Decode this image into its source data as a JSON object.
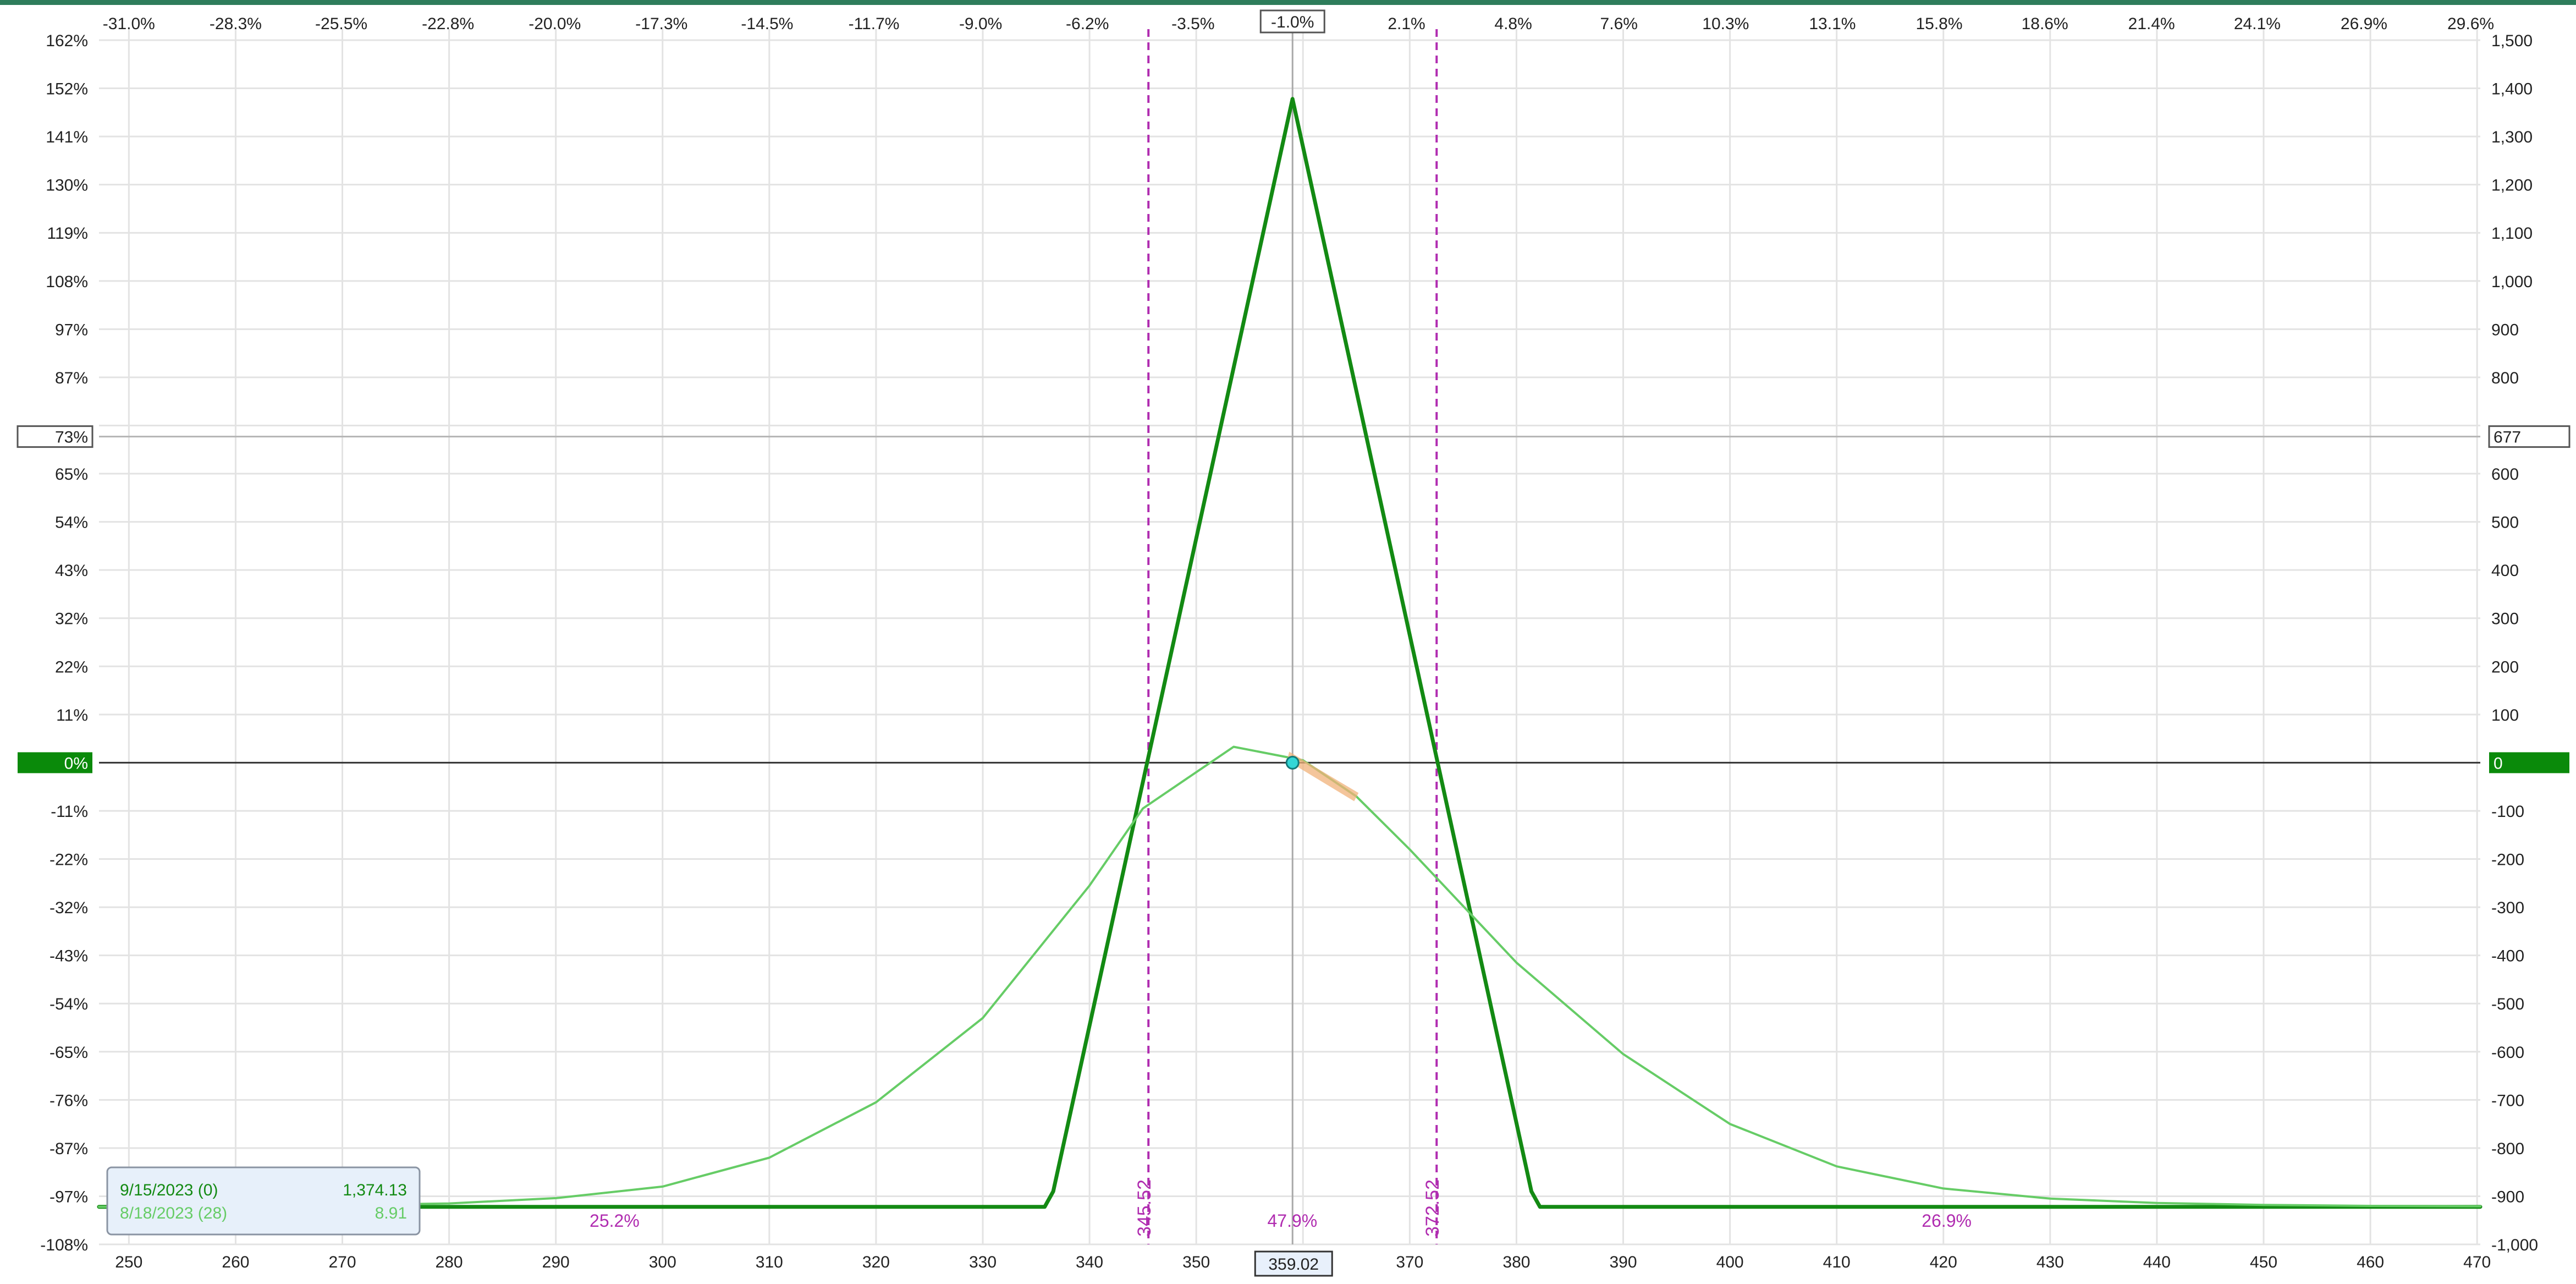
{
  "chart_data": {
    "type": "line",
    "x_axis": {
      "ticks": [
        250,
        260,
        270,
        280,
        290,
        300,
        310,
        320,
        330,
        340,
        350,
        360,
        370,
        380,
        390,
        400,
        410,
        420,
        430,
        440,
        450,
        460,
        470
      ],
      "range": [
        247.2,
        470.3
      ],
      "current_price_label": "359.02",
      "current_price": 359.02
    },
    "top_axis": {
      "pct_ticks": [
        {
          "x": 250.0,
          "label": "-31.0%"
        },
        {
          "x": 260.0,
          "label": "-28.3%"
        },
        {
          "x": 269.9,
          "label": "-25.5%"
        },
        {
          "x": 279.9,
          "label": "-22.8%"
        },
        {
          "x": 289.9,
          "label": "-20.0%"
        },
        {
          "x": 299.9,
          "label": "-17.3%"
        },
        {
          "x": 309.8,
          "label": "-14.5%"
        },
        {
          "x": 319.8,
          "label": "-11.7%"
        },
        {
          "x": 329.8,
          "label": "-9.0%"
        },
        {
          "x": 339.8,
          "label": "-6.2%"
        },
        {
          "x": 349.7,
          "label": "-3.5%"
        },
        {
          "x": 369.7,
          "label": "2.1%"
        },
        {
          "x": 379.7,
          "label": "4.8%"
        },
        {
          "x": 389.6,
          "label": "7.6%"
        },
        {
          "x": 399.6,
          "label": "10.3%"
        },
        {
          "x": 409.6,
          "label": "13.1%"
        },
        {
          "x": 419.6,
          "label": "15.8%"
        },
        {
          "x": 429.5,
          "label": "18.6%"
        },
        {
          "x": 439.5,
          "label": "21.4%"
        },
        {
          "x": 449.4,
          "label": "24.1%"
        },
        {
          "x": 459.4,
          "label": "26.9%"
        },
        {
          "x": 469.4,
          "label": "29.6%"
        }
      ],
      "current_label": "-1.0%"
    },
    "left_axis": {
      "ticks": [
        {
          "y": 1500,
          "label": "162%"
        },
        {
          "y": 1400,
          "label": "152%"
        },
        {
          "y": 1300,
          "label": "141%"
        },
        {
          "y": 1200,
          "label": "130%"
        },
        {
          "y": 1100,
          "label": "119%"
        },
        {
          "y": 1000,
          "label": "108%"
        },
        {
          "y": 900,
          "label": "97%"
        },
        {
          "y": 800,
          "label": "87%"
        },
        {
          "y": 600,
          "label": "65%"
        },
        {
          "y": 500,
          "label": "54%"
        },
        {
          "y": 400,
          "label": "43%"
        },
        {
          "y": 300,
          "label": "32%"
        },
        {
          "y": 200,
          "label": "22%"
        },
        {
          "y": 100,
          "label": "11%"
        },
        {
          "y": -100,
          "label": "-11%"
        },
        {
          "y": -200,
          "label": "-22%"
        },
        {
          "y": -300,
          "label": "-32%"
        },
        {
          "y": -400,
          "label": "-43%"
        },
        {
          "y": -500,
          "label": "-54%"
        },
        {
          "y": -600,
          "label": "-65%"
        },
        {
          "y": -700,
          "label": "-76%"
        },
        {
          "y": -800,
          "label": "-87%"
        },
        {
          "y": -900,
          "label": "-97%"
        },
        {
          "y": -1000,
          "label": "-108%"
        }
      ],
      "zero_label": "0%",
      "cursor_label": "73%"
    },
    "right_axis": {
      "ticks": [
        1500,
        1400,
        1300,
        1200,
        1100,
        1000,
        900,
        800,
        600,
        500,
        400,
        300,
        200,
        100,
        -100,
        -200,
        -300,
        -400,
        -500,
        -600,
        -700,
        -800,
        -900,
        -1000
      ],
      "tick_labels": [
        "1,500",
        "1,400",
        "1,300",
        "1,200",
        "1,100",
        "1,000",
        "900",
        "800",
        "600",
        "500",
        "400",
        "300",
        "200",
        "100",
        "-100",
        "-200",
        "-300",
        "-400",
        "-500",
        "-600",
        "-700",
        "-800",
        "-900",
        "-1,000"
      ],
      "zero_label": "0",
      "cursor_label": "677",
      "cursor_value": 677
    },
    "y_range": [
      -1000,
      1500
    ],
    "series": [
      {
        "name": "9/15/2023 (0)",
        "color": "#138a13",
        "x": [
          247.2,
          335.8,
          336.6,
          359.02,
          381.4,
          382.2,
          470.3
        ],
        "y": [
          -922,
          -922,
          -890,
          1378,
          -890,
          -922,
          -922
        ]
      },
      {
        "name": "8/18/2023 (28)",
        "color": "#66cc66",
        "x": [
          247.2,
          260,
          280,
          290,
          300,
          310,
          320,
          330,
          340,
          345,
          353.5,
          360,
          365,
          370,
          380,
          390,
          400,
          410,
          420,
          430,
          440,
          450,
          460,
          470.3
        ],
        "y": [
          -922,
          -921,
          -915,
          -904,
          -880,
          -820,
          -705,
          -530,
          -255,
          -95,
          33,
          5,
          -70,
          -180,
          -415,
          -605,
          -750,
          -838,
          -884,
          -905,
          -914,
          -918,
          -920,
          -921
        ]
      }
    ],
    "breakevens": [
      {
        "x": 345.52,
        "label": "345.52"
      },
      {
        "x": 372.52,
        "label": "372.52"
      }
    ],
    "probability_labels": [
      {
        "x": 295.5,
        "label": "25.2%"
      },
      {
        "x": 359.0,
        "label": "47.9%"
      },
      {
        "x": 420.3,
        "label": "26.9%"
      }
    ],
    "legend": {
      "placement": "bottom-left",
      "rows": [
        {
          "label": "9/15/2023 (0)",
          "value": "1,374.13",
          "color": "#138a13"
        },
        {
          "label": "8/18/2023 (28)",
          "value": "8.91",
          "color": "#66cc66"
        }
      ]
    },
    "grid": true,
    "colors": {
      "breakeven": "#b02cb0",
      "zero_badge": "#0a8a0a",
      "current_marker": "#33d6d6",
      "theta_highlight": "#f0b27a",
      "top_border": "#2e7d5b"
    }
  }
}
